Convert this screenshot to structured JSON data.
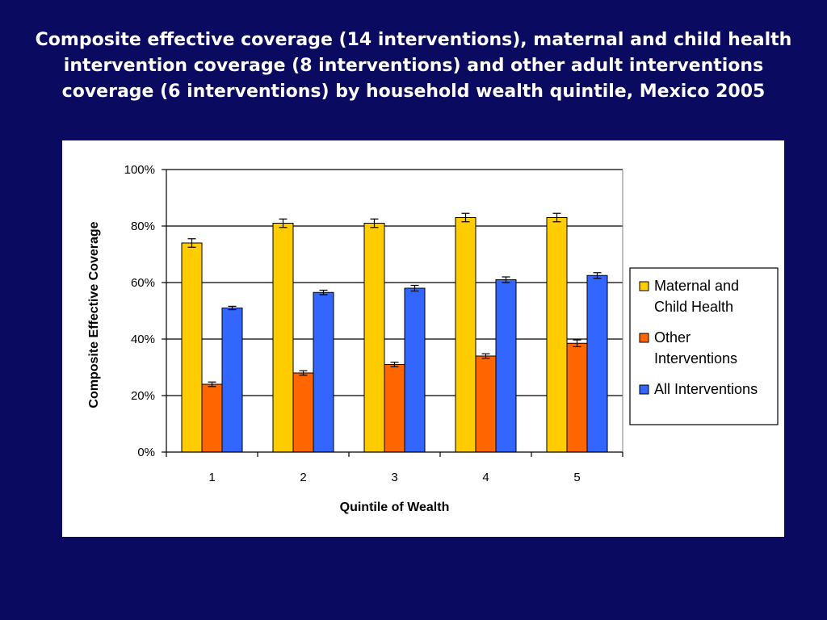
{
  "title": "Composite effective coverage (14 interventions), maternal and child health intervention coverage (8 interventions) and other adult interventions coverage (6 interventions) by household wealth quintile, Mexico 2005",
  "colors": {
    "background": "#0a0a60",
    "panel": "#ffffff",
    "maternal": "#ffcc00",
    "other": "#ff6600",
    "all": "#3366ff"
  },
  "chart_data": {
    "type": "bar",
    "categories": [
      "1",
      "2",
      "3",
      "4",
      "5"
    ],
    "series": [
      {
        "name": "Maternal and Child Health",
        "legend_lines": [
          "Maternal and",
          "Child Health"
        ],
        "color": "#ffcc00",
        "values": [
          0.74,
          0.81,
          0.81,
          0.83,
          0.83
        ],
        "errors": [
          0.015,
          0.015,
          0.015,
          0.015,
          0.015
        ]
      },
      {
        "name": "Other Interventions",
        "legend_lines": [
          "Other",
          "Interventions"
        ],
        "color": "#ff6600",
        "values": [
          0.24,
          0.28,
          0.31,
          0.34,
          0.385
        ],
        "errors": [
          0.008,
          0.008,
          0.008,
          0.008,
          0.012
        ]
      },
      {
        "name": "All Interventions",
        "legend_lines": [
          "All Interventions"
        ],
        "color": "#3366ff",
        "values": [
          0.51,
          0.565,
          0.58,
          0.61,
          0.625
        ],
        "errors": [
          0.006,
          0.008,
          0.01,
          0.01,
          0.01
        ]
      }
    ],
    "xlabel": "Quintile of Wealth",
    "ylabel": "Composite Effective Coverage",
    "ylim": [
      0,
      1
    ],
    "yticks": [
      0,
      0.2,
      0.4,
      0.6,
      0.8,
      1.0
    ],
    "ytick_labels": [
      "0%",
      "20%",
      "40%",
      "60%",
      "80%",
      "100%"
    ],
    "grid": true,
    "legend_position": "right"
  }
}
